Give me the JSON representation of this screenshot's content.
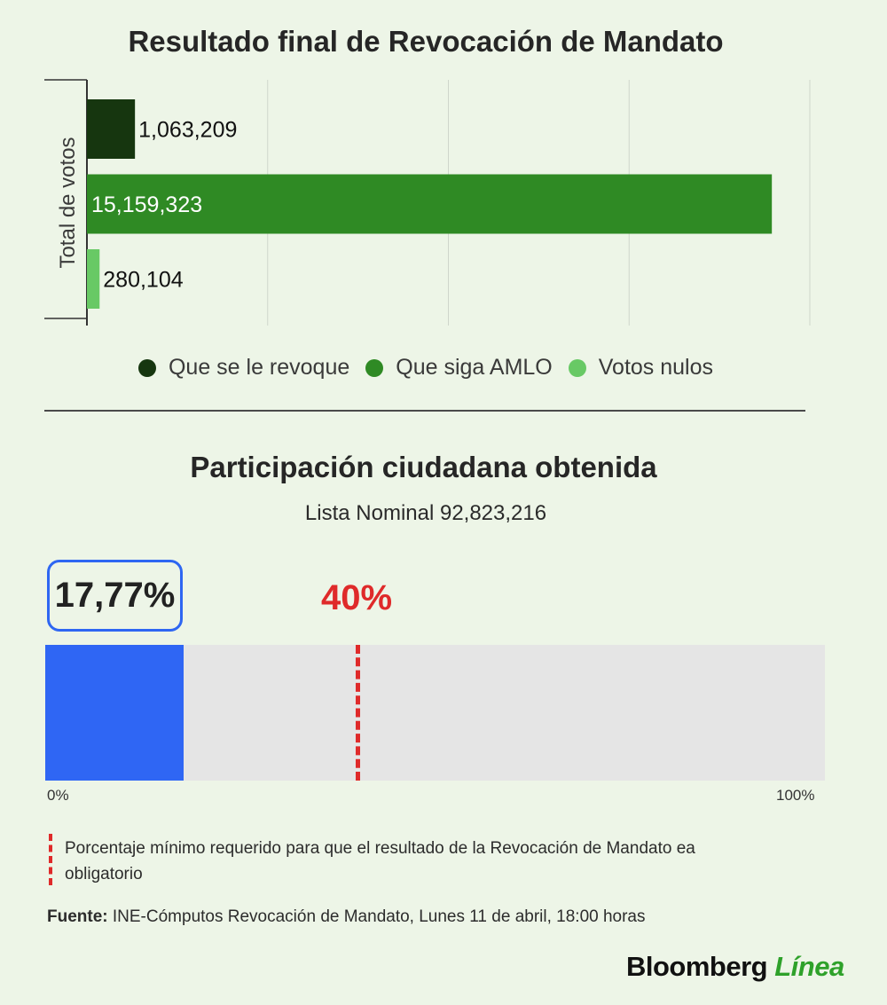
{
  "chart_data": [
    {
      "type": "bar",
      "orientation": "horizontal",
      "title": "Resultado final de Revocación de Mandato",
      "ylabel": "Total de votos",
      "categories": [
        "Que se le revoque",
        "Que siga AMLO",
        "Votos nulos"
      ],
      "values": [
        1063209,
        15159323,
        280104
      ],
      "value_labels": [
        "1,063,209",
        "15,159,323",
        "280,104"
      ],
      "colors": [
        "#16360f",
        "#2f8a24",
        "#68c965"
      ],
      "xlim": [
        0,
        16000000
      ],
      "grid": true,
      "legend": "bottom"
    },
    {
      "type": "bar",
      "orientation": "horizontal",
      "title": "Participación ciudadana obtenida",
      "subtitle": "Lista Nominal 92,823,216",
      "value": 17.77,
      "value_label": "17,77%",
      "threshold": 40,
      "threshold_label": "40%",
      "xlim": [
        0,
        100
      ],
      "tick_labels": [
        "0%",
        "100%"
      ],
      "colors": {
        "fill": "#2f66f4",
        "track": "#e5e5e5",
        "threshold": "#df2a2a"
      }
    }
  ],
  "note": "Porcentaje mínimo requerido para que el resultado de la Revocación de Mandato ea obligatorio",
  "source": {
    "label": "Fuente:",
    "text": " INE-Cómputos Revocación de Mandato, Lunes 11 de abril, 18:00 horas"
  },
  "brand": {
    "name": "Bloomberg",
    "accent": "Línea"
  }
}
